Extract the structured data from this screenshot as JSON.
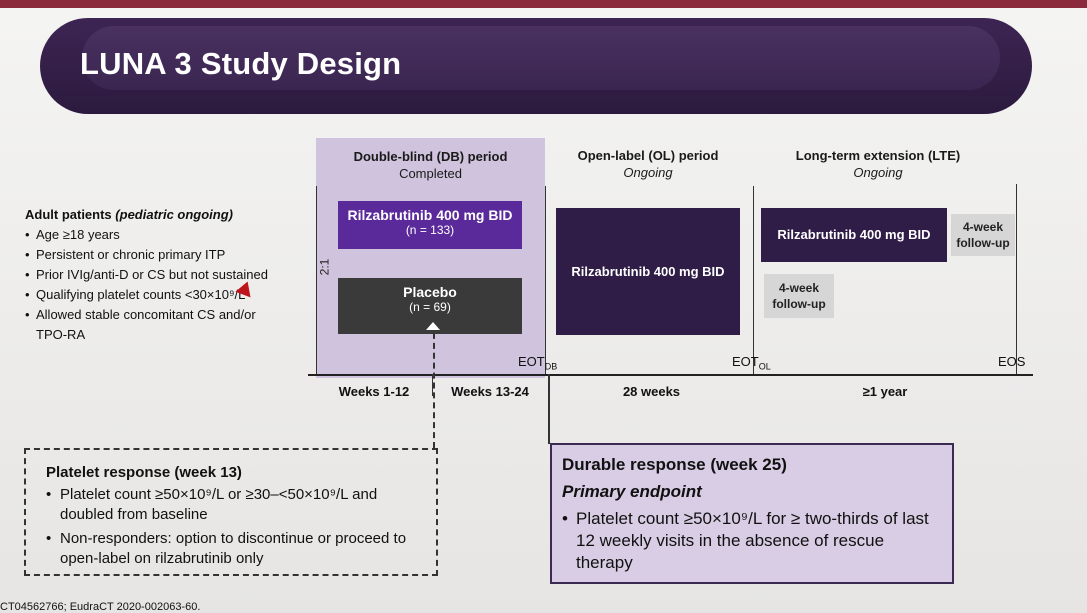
{
  "slide": {
    "title": "LUNA 3 Study Design",
    "periods": {
      "db": {
        "title": "Double-blind (DB) period",
        "status": "Completed"
      },
      "ol": {
        "title": "Open-label (OL) period",
        "status": "Ongoing"
      },
      "lte": {
        "title": "Long-term extension (LTE)",
        "status": "Ongoing"
      }
    },
    "arms": {
      "rilza_db": {
        "label": "Rilzabrutinib 400 mg BID",
        "n": "(n = 133)"
      },
      "placebo": {
        "label": "Placebo",
        "n": "(n = 69)"
      },
      "rilza_ol": {
        "label": "Rilzabrutinib 400 mg BID"
      },
      "rilza_lte": {
        "label": "Rilzabrutinib 400 mg BID"
      },
      "followup_lte": {
        "label": "4-week follow-up"
      },
      "followup_ol": {
        "label": "4-week follow-up"
      }
    },
    "ratio": "2:1",
    "patients": {
      "heading": "Adult patients",
      "heading_italic": "(pediatric ongoing)",
      "items": [
        "Age ≥18 years",
        "Persistent or chronic primary ITP",
        "Prior IVIg/anti-D or CS but not sustained",
        "Qualifying platelet counts <30×10⁹/L",
        "Allowed stable concomitant CS and/or TPO-RA"
      ]
    },
    "timeline": {
      "eot_db": "EOT",
      "eot_db_sub": "DB",
      "eot_ol": "EOT",
      "eot_ol_sub": "OL",
      "eos": "EOS",
      "weeks": [
        "Weeks 1-12",
        "Weeks 13-24",
        "28 weeks",
        "≥1 year"
      ]
    },
    "platelet_response": {
      "heading": "Platelet response (week 13)",
      "items": [
        "Platelet count ≥50×10⁹/L or ≥30–<50×10⁹/L and doubled from baseline",
        "Non-responders: option to discontinue or proceed to open-label on rilzabrutinib only"
      ]
    },
    "durable_response": {
      "heading": "Durable response (week 25)",
      "primary": "Primary endpoint",
      "item": "Platelet count ≥50×10⁹/L for ≥ two-thirds of last 12 weekly visits in the absence of rescue therapy"
    },
    "footer": "CT04562766; EudraCT 2020-002063-60.",
    "colors": {
      "title_bar": "#3a2550",
      "rilza_db": "#5b2a9a",
      "placebo": "#3a3a3a",
      "dark_arm": "#2f1d47",
      "followup": "#d6d6d6"
    }
  }
}
